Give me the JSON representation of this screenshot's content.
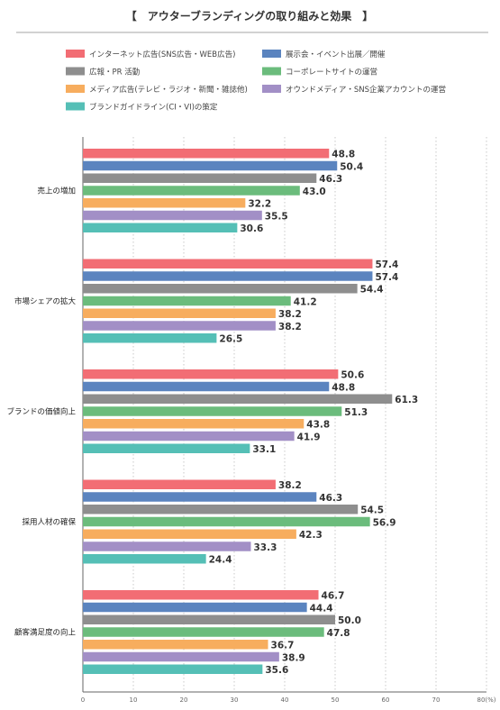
{
  "chart_data": {
    "type": "bar",
    "orientation": "horizontal",
    "title": "【　アウターブランディングの取り組みと効果　】",
    "categories": [
      "売上の増加",
      "市場シェアの拡大",
      "ブランドの価値向上",
      "採用人材の確保",
      "顧客満足度の向上"
    ],
    "series": [
      {
        "name": "インターネット広告(SNS広告・WEB広告)",
        "color": "#f26d74",
        "values": [
          48.8,
          57.4,
          50.6,
          38.2,
          46.7
        ]
      },
      {
        "name": "展示会・イベント出展／開催",
        "color": "#5b84bf",
        "values": [
          50.4,
          57.4,
          48.8,
          46.3,
          44.4
        ]
      },
      {
        "name": "広報・PR 活動",
        "color": "#8e8e8e",
        "values": [
          46.3,
          54.4,
          61.3,
          54.5,
          50.0
        ]
      },
      {
        "name": "コーポレートサイトの運営",
        "color": "#6bbc7c",
        "values": [
          43.0,
          41.2,
          51.3,
          56.9,
          47.8
        ]
      },
      {
        "name": "メディア広告(テレビ・ラジオ・新聞・雑誌他)",
        "color": "#f7ad5e",
        "values": [
          32.2,
          38.2,
          43.8,
          42.3,
          36.7
        ]
      },
      {
        "name": "オウンドメディア・SNS企業アカウントの運営",
        "color": "#a28fc6",
        "values": [
          35.5,
          38.2,
          41.9,
          33.3,
          38.9
        ]
      },
      {
        "name": "ブランドガイドライン(CI・VI)の策定",
        "color": "#55bfb6",
        "values": [
          30.6,
          26.5,
          33.1,
          24.4,
          35.6
        ]
      }
    ],
    "value_labels": [
      [
        "48.8",
        "50.4",
        "46.3",
        "43.0",
        "32.2",
        "35.5",
        "30.6"
      ],
      [
        "57.4",
        "57.4",
        "54.4",
        "41.2",
        "38.2",
        "38.2",
        "26.5"
      ],
      [
        "50.6",
        "48.8",
        "61.3",
        "51.3",
        "43.8",
        "41.9",
        "33.1"
      ],
      [
        "38.2",
        "46.3",
        "54.5",
        "56.9",
        "42.3",
        "33.3",
        "24.4"
      ],
      [
        "46.7",
        "44.4",
        "50.0",
        "47.8",
        "36.7",
        "38.9",
        "35.6"
      ]
    ],
    "xlim": [
      0,
      80
    ],
    "xticks": [
      "0",
      "10",
      "20",
      "30",
      "40",
      "50",
      "60",
      "70",
      "80(%)"
    ],
    "grid": true,
    "legend_position": "top"
  }
}
